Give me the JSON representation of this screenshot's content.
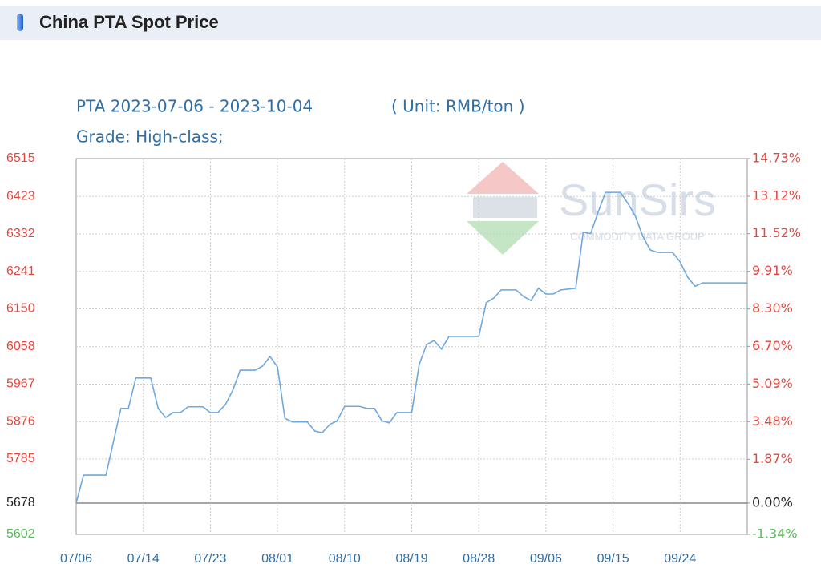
{
  "header": {
    "title": "China PTA Spot Price"
  },
  "chart_data": {
    "type": "line",
    "title": "PTA 2023-07-06 - 2023-10-04",
    "unit": "( Unit: RMB/ton )",
    "subtitle": "Grade: High-class;",
    "watermark": [
      "SunSirs",
      "COMMODITY DATA GROUP"
    ],
    "x": [
      0,
      1,
      4,
      6,
      7,
      8,
      10,
      11,
      12,
      13,
      14,
      15,
      17,
      18,
      19,
      20,
      21,
      22,
      24,
      25,
      26,
      27,
      28,
      29,
      31,
      32,
      33,
      34,
      35,
      36,
      38,
      39,
      40,
      41,
      42,
      43,
      45,
      46,
      47,
      48,
      49,
      50,
      54,
      55,
      56,
      57,
      59,
      60,
      61,
      62,
      63,
      64,
      65,
      67,
      68,
      69,
      70,
      71,
      73,
      74,
      75,
      76,
      77,
      78,
      80,
      81,
      82,
      83,
      84,
      90
    ],
    "series": [
      {
        "color": "#6fa8dc",
        "values": [
          5678,
          5746,
          5746,
          5908,
          5908,
          5982,
          5982,
          5908,
          5886,
          5898,
          5898,
          5912,
          5912,
          5898,
          5898,
          5917,
          5952,
          6001,
          6001,
          6011,
          6034,
          6009,
          5884,
          5875,
          5875,
          5853,
          5849,
          5869,
          5878,
          5913,
          5913,
          5908,
          5908,
          5878,
          5873,
          5898,
          5898,
          6015,
          6063,
          6073,
          6052,
          6083,
          6083,
          6165,
          6176,
          6196,
          6196,
          6180,
          6170,
          6200,
          6186,
          6186,
          6196,
          6200,
          6336,
          6333,
          6385,
          6433,
          6433,
          6406,
          6375,
          6326,
          6293,
          6287,
          6287,
          6264,
          6227,
          6205,
          6213,
          6213
        ]
      }
    ],
    "xlim": [
      0,
      90
    ],
    "xticks": [
      {
        "value": 0,
        "label": "07/06"
      },
      {
        "value": 9,
        "label": "07/14"
      },
      {
        "value": 18,
        "label": "07/23"
      },
      {
        "value": 27,
        "label": "08/01"
      },
      {
        "value": 36,
        "label": "08/10"
      },
      {
        "value": 45,
        "label": "08/19"
      },
      {
        "value": 54,
        "label": "08/28"
      },
      {
        "value": 63,
        "label": "09/06"
      },
      {
        "value": 72,
        "label": "09/15"
      },
      {
        "value": 81,
        "label": "09/24"
      }
    ],
    "ylim": [
      5602,
      6515
    ],
    "yticks": [
      6515,
      6423,
      6332,
      6241,
      6150,
      6058,
      5967,
      5876,
      5785,
      5678,
      5602
    ],
    "y2lim": [
      -1.34,
      14.73
    ],
    "y2ticks": [
      {
        "value": 14.73,
        "label": "14.73%"
      },
      {
        "value": 13.12,
        "label": "13.12%"
      },
      {
        "value": 11.52,
        "label": "11.52%"
      },
      {
        "value": 9.91,
        "label": "9.91%"
      },
      {
        "value": 8.3,
        "label": "8.30%"
      },
      {
        "value": 6.7,
        "label": "6.70%"
      },
      {
        "value": 5.09,
        "label": "5.09%"
      },
      {
        "value": 3.48,
        "label": "3.48%"
      },
      {
        "value": 1.87,
        "label": "1.87%"
      },
      {
        "value": 0,
        "label": "0.00%"
      },
      {
        "value": -1.34,
        "label": "-1.34%"
      }
    ],
    "baseline": 5678,
    "up_color": "#e8453c",
    "down_color": "#5cb85c",
    "base_color": "#222222",
    "grid": true
  }
}
